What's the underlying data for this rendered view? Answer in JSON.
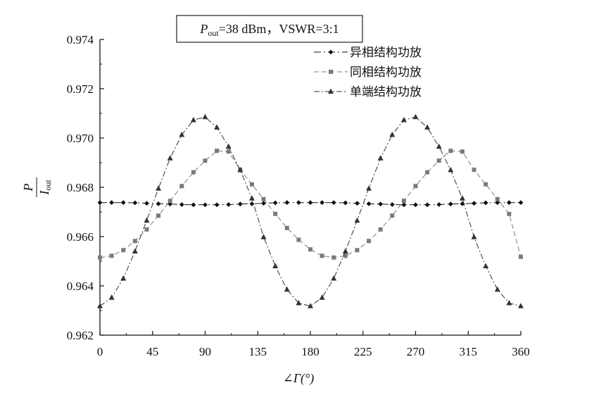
{
  "chart_data": {
    "type": "line",
    "annotation": {
      "p_symbol": "P",
      "p_sub": "out",
      "rest": "=38 dBm，VSWR=3:1"
    },
    "xlabel": "∠Γ(°)",
    "ylabel": {
      "numerator": "P",
      "den_symbol": "I",
      "den_sub": "out"
    },
    "xlim": [
      0,
      360
    ],
    "ylim": [
      0.962,
      0.974
    ],
    "xticks": [
      0,
      45,
      90,
      135,
      180,
      225,
      270,
      315,
      360
    ],
    "yticks": [
      0.962,
      0.964,
      0.966,
      0.968,
      0.97,
      0.972,
      0.974
    ],
    "ytick_labels": [
      "0.962",
      "0.964",
      "0.966",
      "0.968",
      "0.970",
      "0.972",
      "0.974"
    ],
    "legend_position": "top-right",
    "x": [
      0,
      10,
      20,
      30,
      40,
      50,
      60,
      70,
      80,
      90,
      100,
      110,
      120,
      130,
      140,
      150,
      160,
      170,
      180,
      190,
      200,
      210,
      220,
      230,
      240,
      250,
      260,
      270,
      280,
      290,
      300,
      310,
      320,
      330,
      340,
      350,
      360
    ],
    "series": [
      {
        "name": "异相结构功放",
        "marker": "diamond",
        "dash": "10 4 2 4",
        "values": [
          0.96738,
          0.96738,
          0.96738,
          0.96737,
          0.96735,
          0.96733,
          0.96732,
          0.9673,
          0.96729,
          0.96729,
          0.96729,
          0.9673,
          0.96732,
          0.96733,
          0.96735,
          0.96737,
          0.96738,
          0.96738,
          0.96738,
          0.96738,
          0.96738,
          0.96737,
          0.96735,
          0.96733,
          0.96732,
          0.9673,
          0.96729,
          0.96729,
          0.96729,
          0.9673,
          0.96732,
          0.96733,
          0.96735,
          0.96737,
          0.96738,
          0.96738,
          0.96738
        ]
      },
      {
        "name": "同相结构功放",
        "marker": "square",
        "dash": "7 4",
        "values": [
          0.96515,
          0.96522,
          0.96545,
          0.96582,
          0.96629,
          0.96685,
          0.96745,
          0.96805,
          0.96861,
          0.96908,
          0.96948,
          0.96945,
          0.96871,
          0.96812,
          0.96752,
          0.96692,
          0.96635,
          0.96587,
          0.96548,
          0.96522,
          0.96515,
          0.96522,
          0.96545,
          0.96582,
          0.96629,
          0.96685,
          0.96745,
          0.96805,
          0.96861,
          0.96908,
          0.96948,
          0.96945,
          0.96871,
          0.96812,
          0.96752,
          0.96692,
          0.96518
        ]
      },
      {
        "name": "单端结构功放",
        "marker": "triangle",
        "dash": "8 3 2 3",
        "values": [
          0.96318,
          0.96352,
          0.9643,
          0.9654,
          0.96665,
          0.96795,
          0.96918,
          0.97013,
          0.97073,
          0.97085,
          0.97043,
          0.96965,
          0.9687,
          0.96755,
          0.96598,
          0.9648,
          0.96385,
          0.9633,
          0.96318,
          0.96352,
          0.9643,
          0.9654,
          0.96665,
          0.96795,
          0.96918,
          0.97013,
          0.97073,
          0.97085,
          0.97043,
          0.96965,
          0.9687,
          0.96755,
          0.96598,
          0.9648,
          0.96385,
          0.9633,
          0.96318
        ]
      }
    ]
  }
}
